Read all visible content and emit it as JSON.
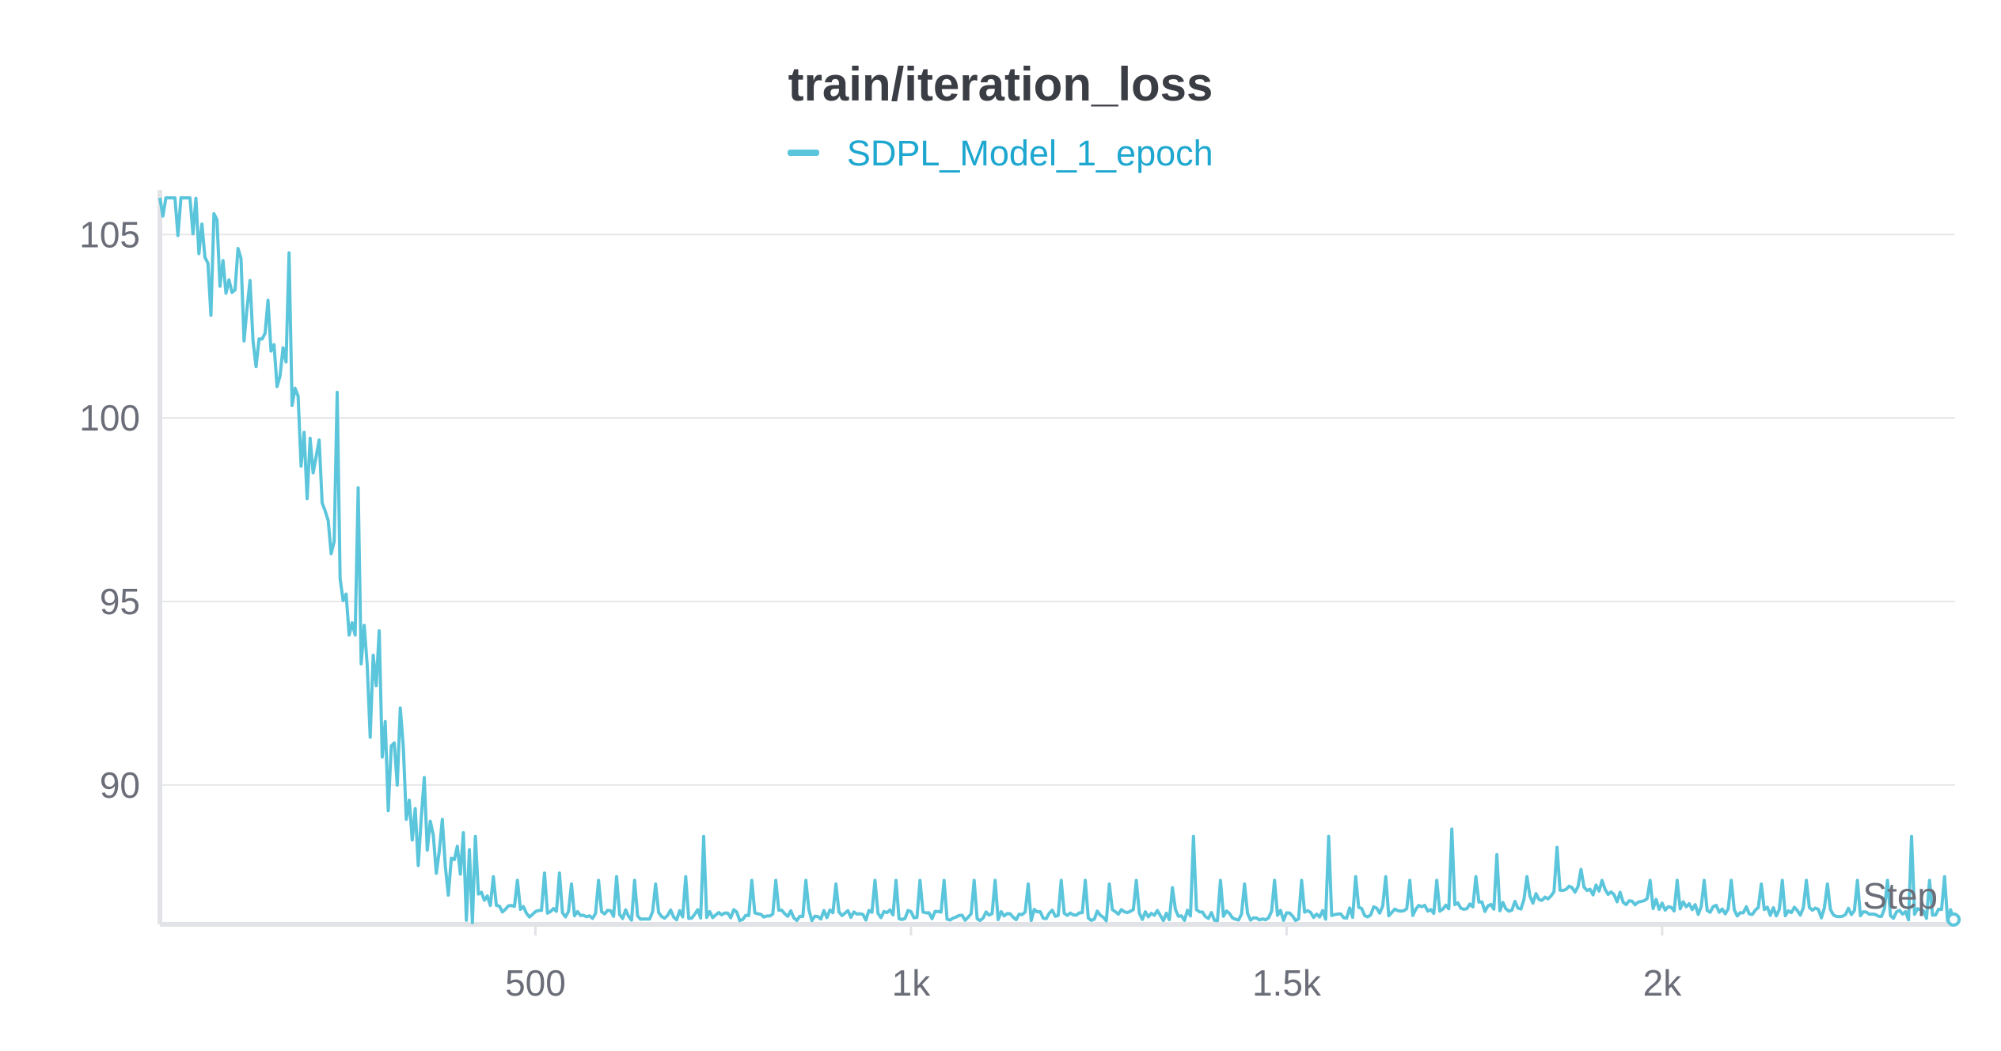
{
  "chart_data": {
    "type": "line",
    "title": "train/iteration_loss",
    "xlabel": "Step",
    "ylabel": "",
    "xlim": [
      0,
      2390
    ],
    "ylim": [
      86.2,
      106
    ],
    "x_ticks": [
      {
        "value": 500,
        "label": "500"
      },
      {
        "value": 1000,
        "label": "1k"
      },
      {
        "value": 1500,
        "label": "1.5k"
      },
      {
        "value": 2000,
        "label": "2k"
      }
    ],
    "y_ticks": [
      {
        "value": 90,
        "label": "90"
      },
      {
        "value": 95,
        "label": "95"
      },
      {
        "value": 100,
        "label": "100"
      },
      {
        "value": 105,
        "label": "105"
      }
    ],
    "grid": true,
    "legend_position": "top-center",
    "series": [
      {
        "name": "SDPL_Model_1_epoch",
        "color": "#5bc5db",
        "keypoints": [
          [
            0,
            106.0
          ],
          [
            20,
            105.8
          ],
          [
            40,
            105.5
          ],
          [
            60,
            105.0
          ],
          [
            80,
            104.5
          ],
          [
            100,
            103.8
          ],
          [
            120,
            103.0
          ],
          [
            140,
            102.3
          ],
          [
            160,
            101.3
          ],
          [
            180,
            100.0
          ],
          [
            200,
            99.0
          ],
          [
            220,
            97.7
          ],
          [
            240,
            96.2
          ],
          [
            260,
            94.6
          ],
          [
            280,
            93.0
          ],
          [
            300,
            91.6
          ],
          [
            320,
            90.2
          ],
          [
            340,
            89.1
          ],
          [
            360,
            88.3
          ],
          [
            380,
            87.8
          ],
          [
            400,
            87.4
          ],
          [
            420,
            87.1
          ],
          [
            440,
            86.8
          ],
          [
            470,
            86.6
          ],
          [
            520,
            86.5
          ],
          [
            700,
            86.45
          ],
          [
            1000,
            86.45
          ],
          [
            1500,
            86.45
          ],
          [
            1800,
            86.7
          ],
          [
            1850,
            87.0
          ],
          [
            1900,
            87.2
          ],
          [
            1950,
            86.9
          ],
          [
            2050,
            86.6
          ],
          [
            2390,
            86.45
          ]
        ],
        "noise": 0.45,
        "spikes": [
          [
            68,
            102.8
          ],
          [
            88,
            103.4
          ],
          [
            110,
            102.1
          ],
          [
            128,
            101.4
          ],
          [
            150,
            102.0
          ],
          [
            170,
            104.5
          ],
          [
            182,
            100.6
          ],
          [
            196,
            97.8
          ],
          [
            212,
            99.4
          ],
          [
            226,
            96.3
          ],
          [
            236,
            100.7
          ],
          [
            248,
            95.2
          ],
          [
            262,
            98.1
          ],
          [
            278,
            91.3
          ],
          [
            290,
            94.2
          ],
          [
            302,
            89.3
          ],
          [
            318,
            92.1
          ],
          [
            334,
            88.5
          ],
          [
            350,
            90.2
          ],
          [
            372,
            88.2
          ],
          [
            386,
            88.0
          ],
          [
            405,
            88.7
          ],
          [
            418,
            88.6
          ],
          [
            443,
            87.5
          ],
          [
            475,
            87.4
          ],
          [
            510,
            87.6
          ],
          [
            530,
            87.6
          ],
          [
            548,
            87.3
          ],
          [
            582,
            87.4
          ],
          [
            606,
            87.5
          ],
          [
            632,
            87.4
          ],
          [
            660,
            87.3
          ],
          [
            700,
            87.5
          ],
          [
            722,
            88.6
          ],
          [
            762,
            86.6
          ],
          [
            788,
            87.4
          ],
          [
            820,
            87.4
          ],
          [
            860,
            87.4
          ],
          [
            900,
            87.3
          ],
          [
            950,
            87.4
          ],
          [
            980,
            87.4
          ],
          [
            1010,
            87.4
          ],
          [
            1045,
            87.4
          ],
          [
            1085,
            87.4
          ],
          [
            1110,
            87.4
          ],
          [
            1155,
            87.3
          ],
          [
            1200,
            87.4
          ],
          [
            1230,
            87.4
          ],
          [
            1262,
            87.3
          ],
          [
            1300,
            87.4
          ],
          [
            1346,
            87.2
          ],
          [
            1375,
            88.6
          ],
          [
            1410,
            87.4
          ],
          [
            1445,
            87.3
          ],
          [
            1485,
            87.4
          ],
          [
            1520,
            87.4
          ],
          [
            1555,
            88.6
          ],
          [
            1590,
            87.5
          ],
          [
            1630,
            87.5
          ],
          [
            1662,
            87.4
          ],
          [
            1700,
            87.4
          ],
          [
            1720,
            88.8
          ],
          [
            1750,
            87.5
          ],
          [
            1780,
            88.1
          ],
          [
            1820,
            87.5
          ],
          [
            1860,
            88.3
          ],
          [
            1890,
            87.7
          ],
          [
            1920,
            87.4
          ],
          [
            1985,
            87.4
          ],
          [
            2020,
            87.4
          ],
          [
            2055,
            87.4
          ],
          [
            2090,
            87.4
          ],
          [
            2130,
            87.3
          ],
          [
            2160,
            87.4
          ],
          [
            2190,
            87.4
          ],
          [
            2220,
            87.3
          ],
          [
            2260,
            87.4
          ],
          [
            2300,
            87.4
          ],
          [
            2330,
            88.6
          ],
          [
            2355,
            87.4
          ],
          [
            2375,
            87.5
          ]
        ]
      }
    ]
  }
}
